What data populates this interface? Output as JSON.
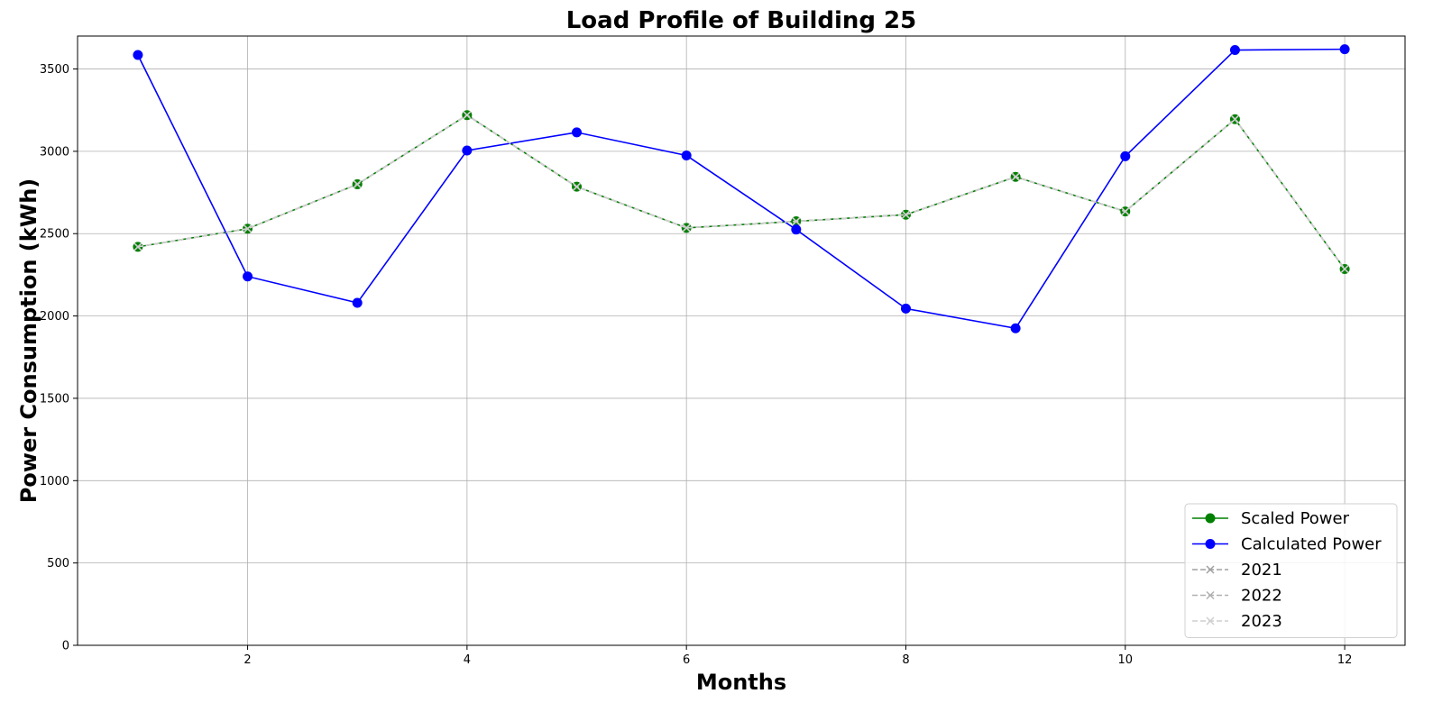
{
  "chart_data": {
    "type": "line",
    "title": "Load Profile of Building 25",
    "xlabel": "Months",
    "ylabel": "Power Consumption (kWh)",
    "x": [
      1,
      2,
      3,
      4,
      5,
      6,
      7,
      8,
      9,
      10,
      11,
      12
    ],
    "xlim": [
      0.45,
      12.55
    ],
    "ylim": [
      0,
      3700
    ],
    "xticks": [
      2,
      4,
      6,
      8,
      10,
      12
    ],
    "yticks": [
      0,
      500,
      1000,
      1500,
      2000,
      2500,
      3000,
      3500
    ],
    "grid": true,
    "legend_position": "lower-right",
    "series": [
      {
        "name": "Scaled Power",
        "color": "#008000",
        "style": "solid",
        "marker": "circle",
        "values": [
          2420,
          2530,
          2800,
          3220,
          2785,
          2535,
          2575,
          2615,
          2845,
          2635,
          3195,
          2285
        ]
      },
      {
        "name": "Calculated Power",
        "color": "#0000ff",
        "style": "solid",
        "marker": "circle",
        "values": [
          3585,
          2240,
          2080,
          3005,
          3115,
          2975,
          2525,
          2045,
          1925,
          2970,
          3615,
          3620
        ]
      },
      {
        "name": "2021",
        "color": "#a0a0a0",
        "style": "dashed",
        "marker": "x",
        "values": [
          2420,
          2530,
          2800,
          3220,
          2785,
          2535,
          2575,
          2615,
          2845,
          2635,
          3195,
          2285
        ]
      },
      {
        "name": "2022",
        "color": "#b0b0b0",
        "style": "dashed",
        "marker": "x",
        "values": [
          2420,
          2530,
          2800,
          3220,
          2785,
          2535,
          2575,
          2615,
          2845,
          2635,
          3195,
          2285
        ]
      },
      {
        "name": "2023",
        "color": "#cfcfcf",
        "style": "dashed",
        "marker": "x",
        "values": [
          2420,
          2530,
          2800,
          3220,
          2785,
          2535,
          2575,
          2615,
          2845,
          2635,
          3195,
          2285
        ]
      }
    ]
  }
}
